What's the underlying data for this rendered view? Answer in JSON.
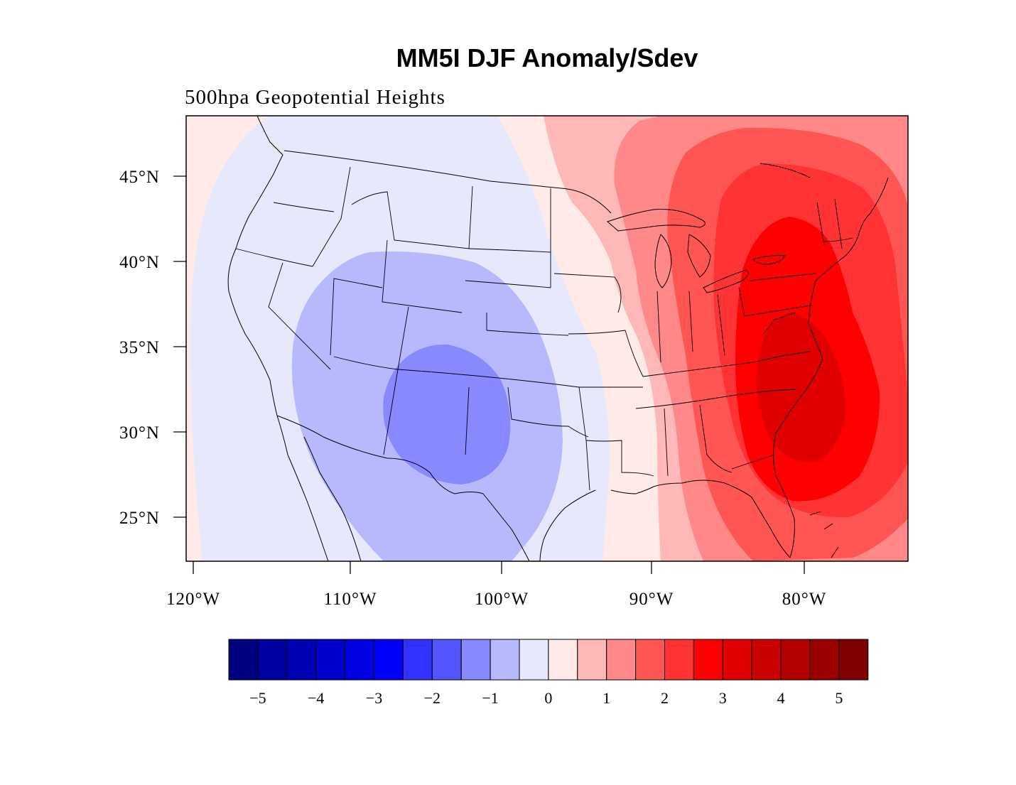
{
  "title": "MM5I DJF Anomaly/Sdev",
  "subtitle": "500hpa Geopotential Heights",
  "lat_labels": [
    "45°N",
    "40°N",
    "35°N",
    "30°N",
    "25°N"
  ],
  "lon_labels": [
    "120°W",
    "110°W",
    "100°W",
    "90°W",
    "80°W"
  ],
  "colorbar": {
    "labels": [
      "−5",
      "−4",
      "−3",
      "−2",
      "−1",
      "0",
      "1",
      "2",
      "3",
      "4",
      "5"
    ],
    "colors": [
      "#000080",
      "#0000a0",
      "#0000b4",
      "#0000cc",
      "#0000e0",
      "#0000ff",
      "#3333ff",
      "#5555ff",
      "#8888ff",
      "#b8b8ff",
      "#e8e8fd",
      "#ffeaea",
      "#ffb8b8",
      "#ff8888",
      "#ff5555",
      "#ff3333",
      "#ff0000",
      "#e00000",
      "#cc0000",
      "#b40000",
      "#9a0000",
      "#800000"
    ]
  },
  "map": {
    "extent": {
      "lon": [
        -120.5,
        -73.2
      ],
      "lat": [
        22.5,
        48.5
      ]
    },
    "field": "500hpa geopotential height anomaly / standard deviation",
    "features": {
      "negative_center": {
        "lon": -104,
        "lat": 31.5,
        "level": "-2 to -1.5"
      },
      "positive_center": {
        "lon": -80,
        "lat": 33,
        "level": "3.5 to 4"
      }
    }
  }
}
